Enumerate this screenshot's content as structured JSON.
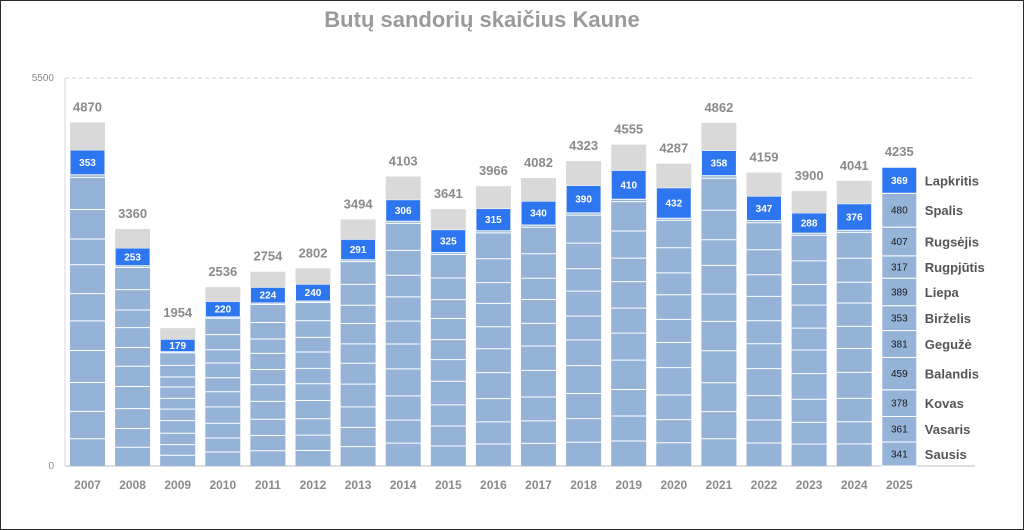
{
  "chart_data": {
    "type": "bar",
    "title": "Butų sandorių skaičius Kaune",
    "ylim": [
      0,
      5500
    ],
    "yticks": [
      "0",
      "5500"
    ],
    "gridline_at": 5500,
    "categories": [
      "2007",
      "2008",
      "2009",
      "2010",
      "2011",
      "2012",
      "2013",
      "2014",
      "2015",
      "2016",
      "2017",
      "2018",
      "2019",
      "2020",
      "2021",
      "2022",
      "2023",
      "2024",
      "2025"
    ],
    "totals": [
      4870,
      3360,
      1954,
      2536,
      2754,
      2802,
      3494,
      4103,
      3641,
      3966,
      4082,
      4323,
      4555,
      4287,
      4862,
      4159,
      3900,
      4041,
      4235
    ],
    "current_month_values": [
      353,
      253,
      179,
      220,
      224,
      240,
      291,
      306,
      325,
      315,
      340,
      390,
      410,
      432,
      358,
      347,
      288,
      376,
      369
    ],
    "current_month_name": "Lapkritis",
    "bar_2025_months": [
      {
        "name": "Sausis",
        "value": 341
      },
      {
        "name": "Vasaris",
        "value": 361
      },
      {
        "name": "Kovas",
        "value": 378
      },
      {
        "name": "Balandis",
        "value": 459
      },
      {
        "name": "Gegužė",
        "value": 381
      },
      {
        "name": "Birželis",
        "value": 353
      },
      {
        "name": "Liepa",
        "value": 389
      },
      {
        "name": "Rugpjūtis",
        "value": 317
      },
      {
        "name": "Rugsėjis",
        "value": 407
      },
      {
        "name": "Spalis",
        "value": 480
      },
      {
        "name": "Lapkritis",
        "value": 369
      }
    ],
    "colors": {
      "months_fill": "#95b3d7",
      "current_month_fill": "#2e75f0",
      "remaining_fill": "#d9d9d9",
      "segment_divider": "#ffffff",
      "grid": "#cfcfcf"
    }
  }
}
